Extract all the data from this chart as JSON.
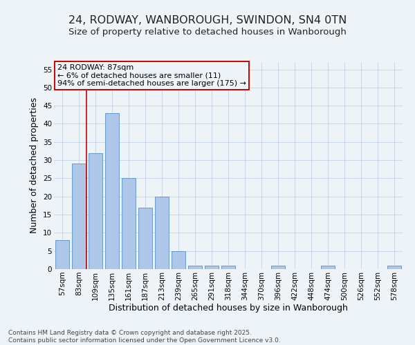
{
  "title_line1": "24, RODWAY, WANBOROUGH, SWINDON, SN4 0TN",
  "title_line2": "Size of property relative to detached houses in Wanborough",
  "xlabel": "Distribution of detached houses by size in Wanborough",
  "ylabel": "Number of detached properties",
  "categories": [
    "57sqm",
    "83sqm",
    "109sqm",
    "135sqm",
    "161sqm",
    "187sqm",
    "213sqm",
    "239sqm",
    "265sqm",
    "291sqm",
    "318sqm",
    "344sqm",
    "370sqm",
    "396sqm",
    "422sqm",
    "448sqm",
    "474sqm",
    "500sqm",
    "526sqm",
    "552sqm",
    "578sqm"
  ],
  "values": [
    8,
    29,
    32,
    43,
    25,
    17,
    20,
    5,
    1,
    1,
    1,
    0,
    0,
    1,
    0,
    0,
    1,
    0,
    0,
    0,
    1
  ],
  "bar_color": "#aec6e8",
  "bar_edge_color": "#5a8fc2",
  "grid_color": "#c8d8e8",
  "background_color": "#eef3f8",
  "vline_color": "#cc0000",
  "annotation_text": "24 RODWAY: 87sqm\n← 6% of detached houses are smaller (11)\n94% of semi-detached houses are larger (175) →",
  "annotation_box_color": "#cc0000",
  "ylim": [
    0,
    57
  ],
  "yticks": [
    0,
    5,
    10,
    15,
    20,
    25,
    30,
    35,
    40,
    45,
    50,
    55
  ],
  "footer": "Contains HM Land Registry data © Crown copyright and database right 2025.\nContains public sector information licensed under the Open Government Licence v3.0.",
  "title_fontsize": 11.5,
  "subtitle_fontsize": 9.5,
  "axis_label_fontsize": 9,
  "tick_fontsize": 7.5,
  "annotation_fontsize": 8,
  "footer_fontsize": 6.5
}
